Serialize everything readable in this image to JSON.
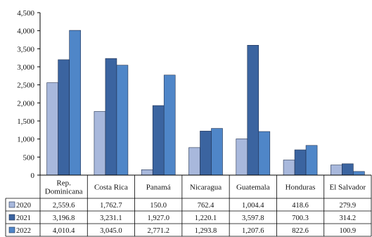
{
  "chart_data": {
    "type": "bar",
    "title": "",
    "xlabel": "",
    "ylabel": "",
    "ylim": [
      0,
      4500
    ],
    "yticks": [
      "0",
      "500",
      "1,000",
      "1,500",
      "2,000",
      "2,500",
      "3,000",
      "3,500",
      "4,000",
      "4,500"
    ],
    "grid": false,
    "legend": "data-table-left",
    "categories": [
      [
        "Rep.",
        "Dominicana"
      ],
      [
        "Costa Rica"
      ],
      [
        "Panamá"
      ],
      [
        "Nicaragua"
      ],
      [
        "Guatemala"
      ],
      [
        "Honduras"
      ],
      [
        "El Salvador"
      ]
    ],
    "series": [
      {
        "name": "2020",
        "color": "#a8b8dc",
        "values": [
          2559.6,
          1762.7,
          150.0,
          762.4,
          1004.4,
          418.6,
          279.9
        ],
        "labels": [
          "2,559.6",
          "1,762.7",
          "150.0",
          "762.4",
          "1,004.4",
          "418.6",
          "279.9"
        ]
      },
      {
        "name": "2021",
        "color": "#3b64a0",
        "values": [
          3196.8,
          3231.1,
          1927.0,
          1220.1,
          3597.8,
          700.3,
          314.2
        ],
        "labels": [
          "3,196.8",
          "3,231.1",
          "1,927.0",
          "1,220.1",
          "3,597.8",
          "700.3",
          "314.2"
        ]
      },
      {
        "name": "2022",
        "color": "#4f86c8",
        "values": [
          4010.4,
          3045.0,
          2771.2,
          1293.8,
          1207.6,
          822.6,
          100.9
        ],
        "labels": [
          "4,010.4",
          "3,045.0",
          "2,771.2",
          "1,293.8",
          "1,207.6",
          "822.6",
          "100.9"
        ]
      }
    ]
  }
}
